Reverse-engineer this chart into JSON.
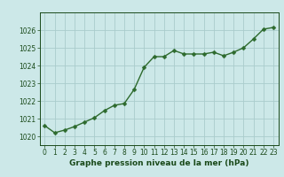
{
  "x": [
    0,
    1,
    2,
    3,
    4,
    5,
    6,
    7,
    8,
    9,
    10,
    11,
    12,
    13,
    14,
    15,
    16,
    17,
    18,
    19,
    20,
    21,
    22,
    23
  ],
  "y": [
    1020.6,
    1020.2,
    1020.35,
    1020.55,
    1020.8,
    1021.05,
    1021.45,
    1021.75,
    1021.85,
    1022.65,
    1023.9,
    1024.5,
    1024.5,
    1024.85,
    1024.65,
    1024.65,
    1024.65,
    1024.75,
    1024.55,
    1024.75,
    1025.0,
    1025.5,
    1026.05,
    1026.15
  ],
  "line_color": "#2d6a2d",
  "marker": "D",
  "marker_size": 2.5,
  "bg_color": "#cce8e8",
  "grid_color": "#aacccc",
  "xlabel": "Graphe pression niveau de la mer (hPa)",
  "xlabel_color": "#1a4a1a",
  "tick_color": "#1a4a1a",
  "ylim": [
    1019.5,
    1027.0
  ],
  "xlim": [
    -0.5,
    23.5
  ],
  "yticks": [
    1020,
    1021,
    1022,
    1023,
    1024,
    1025,
    1026
  ],
  "xticks": [
    0,
    1,
    2,
    3,
    4,
    5,
    6,
    7,
    8,
    9,
    10,
    11,
    12,
    13,
    14,
    15,
    16,
    17,
    18,
    19,
    20,
    21,
    22,
    23
  ],
  "tick_fontsize": 5.5,
  "label_fontsize": 6.5,
  "line_width": 1.0
}
